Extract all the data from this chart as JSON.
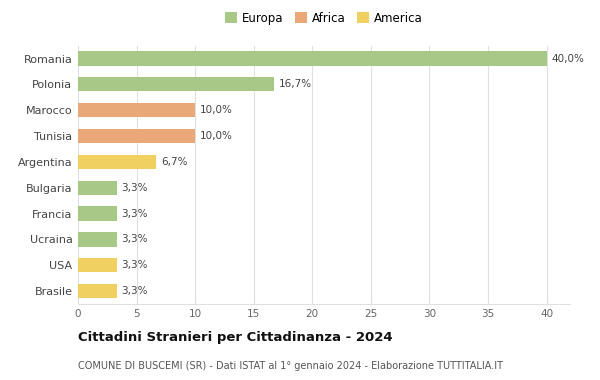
{
  "countries": [
    "Romania",
    "Polonia",
    "Marocco",
    "Tunisia",
    "Argentina",
    "Bulgaria",
    "Francia",
    "Ucraina",
    "USA",
    "Brasile"
  ],
  "values": [
    40.0,
    16.7,
    10.0,
    10.0,
    6.7,
    3.3,
    3.3,
    3.3,
    3.3,
    3.3
  ],
  "labels": [
    "40,0%",
    "16,7%",
    "10,0%",
    "10,0%",
    "6,7%",
    "3,3%",
    "3,3%",
    "3,3%",
    "3,3%",
    "3,3%"
  ],
  "colors": [
    "#a8c888",
    "#a8c888",
    "#e8a878",
    "#e8a878",
    "#f0d060",
    "#a8c888",
    "#a8c888",
    "#a8c888",
    "#f0d060",
    "#f0d060"
  ],
  "legend_labels": [
    "Europa",
    "Africa",
    "America"
  ],
  "legend_colors": [
    "#a8c888",
    "#e8a878",
    "#f0d060"
  ],
  "title": "Cittadini Stranieri per Cittadinanza - 2024",
  "subtitle": "COMUNE DI BUSCEMI (SR) - Dati ISTAT al 1° gennaio 2024 - Elaborazione TUTTITALIA.IT",
  "xlim": [
    0,
    42
  ],
  "xticks": [
    0,
    5,
    10,
    15,
    20,
    25,
    30,
    35,
    40
  ],
  "bg_color": "#ffffff",
  "grid_color": "#e0e0e0",
  "bar_height": 0.55
}
